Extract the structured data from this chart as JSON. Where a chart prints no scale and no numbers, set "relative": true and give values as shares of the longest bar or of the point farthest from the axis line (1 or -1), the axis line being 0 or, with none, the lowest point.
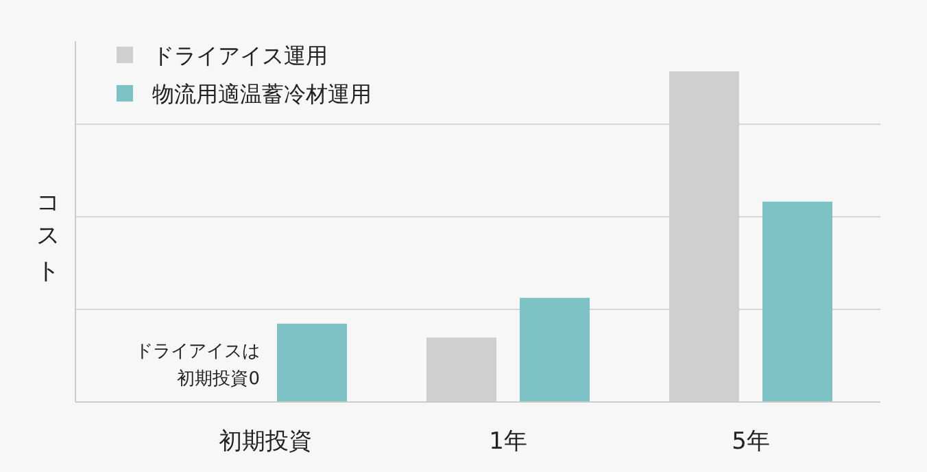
{
  "chart_data": {
    "type": "bar",
    "relative": true,
    "ylabel": "コスト",
    "categories": [
      "初期投資",
      "1年",
      "5年"
    ],
    "series": [
      {
        "name": "ドライアイス運用",
        "color": "#cfcfcf",
        "values": [
          0,
          0.195,
          1
        ]
      },
      {
        "name": "物流用適温蓄冷材運用",
        "color": "#7dc3c5",
        "values": [
          0.237,
          0.315,
          0.606
        ]
      }
    ],
    "annotations": [
      "ドライアイスは初期投資0"
    ],
    "grid": "y",
    "legend": "top left"
  }
}
